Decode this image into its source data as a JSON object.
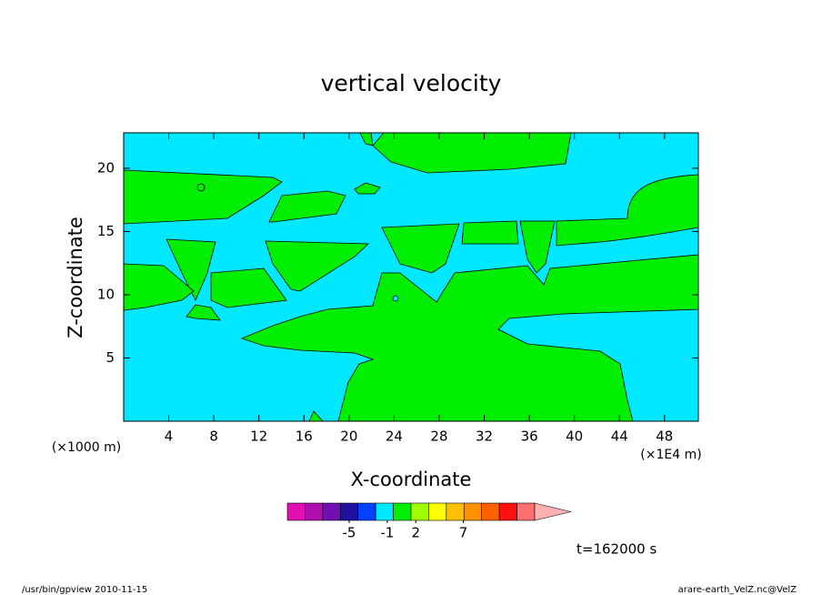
{
  "chart_data": {
    "type": "contour",
    "title": "vertical velocity",
    "x_label": "X-coordinate",
    "y_label": "Z-coordinate",
    "x_unit_left": "(×1000 m)",
    "x_unit_right": "(×1E4 m)",
    "time_label": "t=162000 s",
    "xlim": [
      0,
      51
    ],
    "ylim": [
      0,
      22.8
    ],
    "xticks": [
      4,
      8,
      12,
      16,
      20,
      24,
      28,
      32,
      36,
      40,
      44,
      48
    ],
    "yticks": [
      5,
      10,
      15,
      20
    ],
    "colorbar": {
      "clim": [
        -11.5,
        14.5
      ],
      "ticks": [
        -5,
        -1,
        2,
        7
      ],
      "colors": [
        "#e010b0",
        "#b010b0",
        "#7010b0",
        "#2010a0",
        "#0040ff",
        "#00e8ff",
        "#00ee00",
        "#a0ff00",
        "#ffff00",
        "#ffc000",
        "#ff9000",
        "#ff6000",
        "#ff1010",
        "#ff7070",
        "#ffb0b0"
      ]
    }
  },
  "footer": {
    "left": "/usr/bin/gpview  2010-11-15",
    "right": "arare-earth_VelZ.nc@VelZ"
  }
}
